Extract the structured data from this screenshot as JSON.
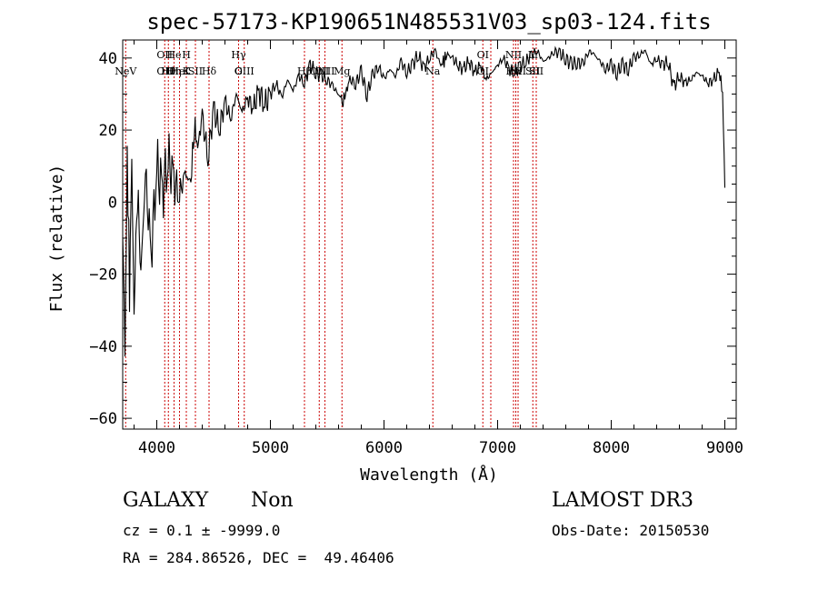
{
  "chart_data": {
    "type": "line",
    "title": "spec-57173-KP190651N485531V03_sp03-124.fits",
    "xlabel": "Wavelength (Å)",
    "ylabel": "Flux (relative)",
    "xlim": [
      3700,
      9100
    ],
    "ylim": [
      -63,
      45
    ],
    "xticks": [
      4000,
      5000,
      6000,
      7000,
      8000,
      9000
    ],
    "yticks": [
      -60,
      -40,
      -20,
      0,
      20,
      40
    ],
    "series": [
      {
        "name": "flux",
        "x": [
          3700,
          3720,
          3740,
          3760,
          3780,
          3800,
          3830,
          3860,
          3900,
          3950,
          4000,
          4050,
          4100,
          4150,
          4200,
          4250,
          4300,
          4330,
          4360,
          4400,
          4450,
          4500,
          4550,
          4600,
          4650,
          4700,
          4750,
          4800,
          4850,
          4900,
          4950,
          5000,
          5050,
          5100,
          5150,
          5200,
          5250,
          5300,
          5350,
          5400,
          5450,
          5500,
          5550,
          5600,
          5640,
          5700,
          5750,
          5800,
          5850,
          5900,
          5950,
          6000,
          6050,
          6100,
          6150,
          6200,
          6250,
          6300,
          6350,
          6400,
          6450,
          6500,
          6560,
          6600,
          6650,
          6700,
          6750,
          6800,
          6850,
          6900,
          6950,
          7000,
          7050,
          7100,
          7150,
          7200,
          7250,
          7300,
          7350,
          7400,
          7450,
          7500,
          7550,
          7600,
          7650,
          7700,
          7750,
          7800,
          7850,
          7900,
          7950,
          8000,
          8050,
          8100,
          8150,
          8200,
          8250,
          8300,
          8350,
          8400,
          8450,
          8500,
          8550,
          8600,
          8650,
          8700,
          8750,
          8800,
          8850,
          8900,
          8950,
          8980,
          9000
        ],
        "y": [
          -5,
          -45,
          15,
          -25,
          10,
          -30,
          5,
          -20,
          8,
          -15,
          10,
          3,
          12,
          6,
          2,
          8,
          5,
          22,
          15,
          24,
          12,
          26,
          20,
          28,
          23,
          30,
          25,
          29,
          26,
          31,
          27,
          30,
          33,
          29,
          34,
          31,
          35,
          33,
          38,
          36,
          35,
          34,
          32,
          30,
          28,
          34,
          33,
          36,
          30,
          35,
          38,
          34,
          37,
          35,
          39,
          36,
          38,
          41,
          37,
          40,
          42,
          38,
          41,
          40,
          38,
          37,
          39,
          36,
          38,
          34,
          36,
          38,
          40,
          37,
          36,
          38,
          39,
          41,
          42,
          39,
          40,
          42,
          41,
          40,
          38,
          39,
          38,
          42,
          41,
          39,
          37,
          38,
          36,
          38,
          37,
          40,
          41,
          42,
          38,
          40,
          38,
          39,
          32,
          35,
          33,
          34,
          36,
          35,
          33,
          34,
          36,
          31,
          4
        ]
      }
    ],
    "spectral_lines": [
      {
        "wavelength": 3726,
        "labels": [
          "NeV"
        ]
      },
      {
        "wavelength": 4070,
        "labels": [
          "OII",
          "OII"
        ]
      },
      {
        "wavelength": 4102,
        "labels": [
          "Hθ"
        ]
      },
      {
        "wavelength": 4152,
        "labels": [
          "He",
          "Hη"
        ]
      },
      {
        "wavelength": 4200,
        "labels": [
          "HeI"
        ]
      },
      {
        "wavelength": 4260,
        "labels": [
          "H",
          "K"
        ]
      },
      {
        "wavelength": 4340,
        "labels": [
          "SII"
        ]
      },
      {
        "wavelength": 4460,
        "labels": [
          "Hδ"
        ]
      },
      {
        "wavelength": 4720,
        "labels": [
          "Hγ",
          "G"
        ]
      },
      {
        "wavelength": 4770,
        "labels": [
          "OIII"
        ]
      },
      {
        "wavelength": 5300,
        "labels": [
          "Hβ"
        ]
      },
      {
        "wavelength": 5430,
        "labels": [
          "OIII"
        ]
      },
      {
        "wavelength": 5480,
        "labels": [
          "OIII"
        ]
      },
      {
        "wavelength": 5630,
        "labels": [
          "Mg"
        ]
      },
      {
        "wavelength": 6430,
        "labels": [
          "Na"
        ]
      },
      {
        "wavelength": 6870,
        "labels": [
          "OI",
          "OI"
        ]
      },
      {
        "wavelength": 6940,
        "labels": []
      },
      {
        "wavelength": 7140,
        "labels": [
          "NII",
          "Hα"
        ]
      },
      {
        "wavelength": 7160,
        "labels": []
      },
      {
        "wavelength": 7180,
        "labels": [
          "NII"
        ]
      },
      {
        "wavelength": 7310,
        "labels": [
          "Li",
          "SII"
        ]
      },
      {
        "wavelength": 7340,
        "labels": [
          "SII"
        ]
      }
    ]
  },
  "info": {
    "class": "GALAXY",
    "subclass": "Non",
    "survey": "LAMOST DR3",
    "cz_line": "cz = 0.1 ± -9999.0",
    "obs_date_line": "Obs-Date: 20150530",
    "coords_line": "RA = 284.86526, DEC =  49.46406"
  },
  "colors": {
    "spectrum": "#000000",
    "line_markers": "#cc0000"
  }
}
